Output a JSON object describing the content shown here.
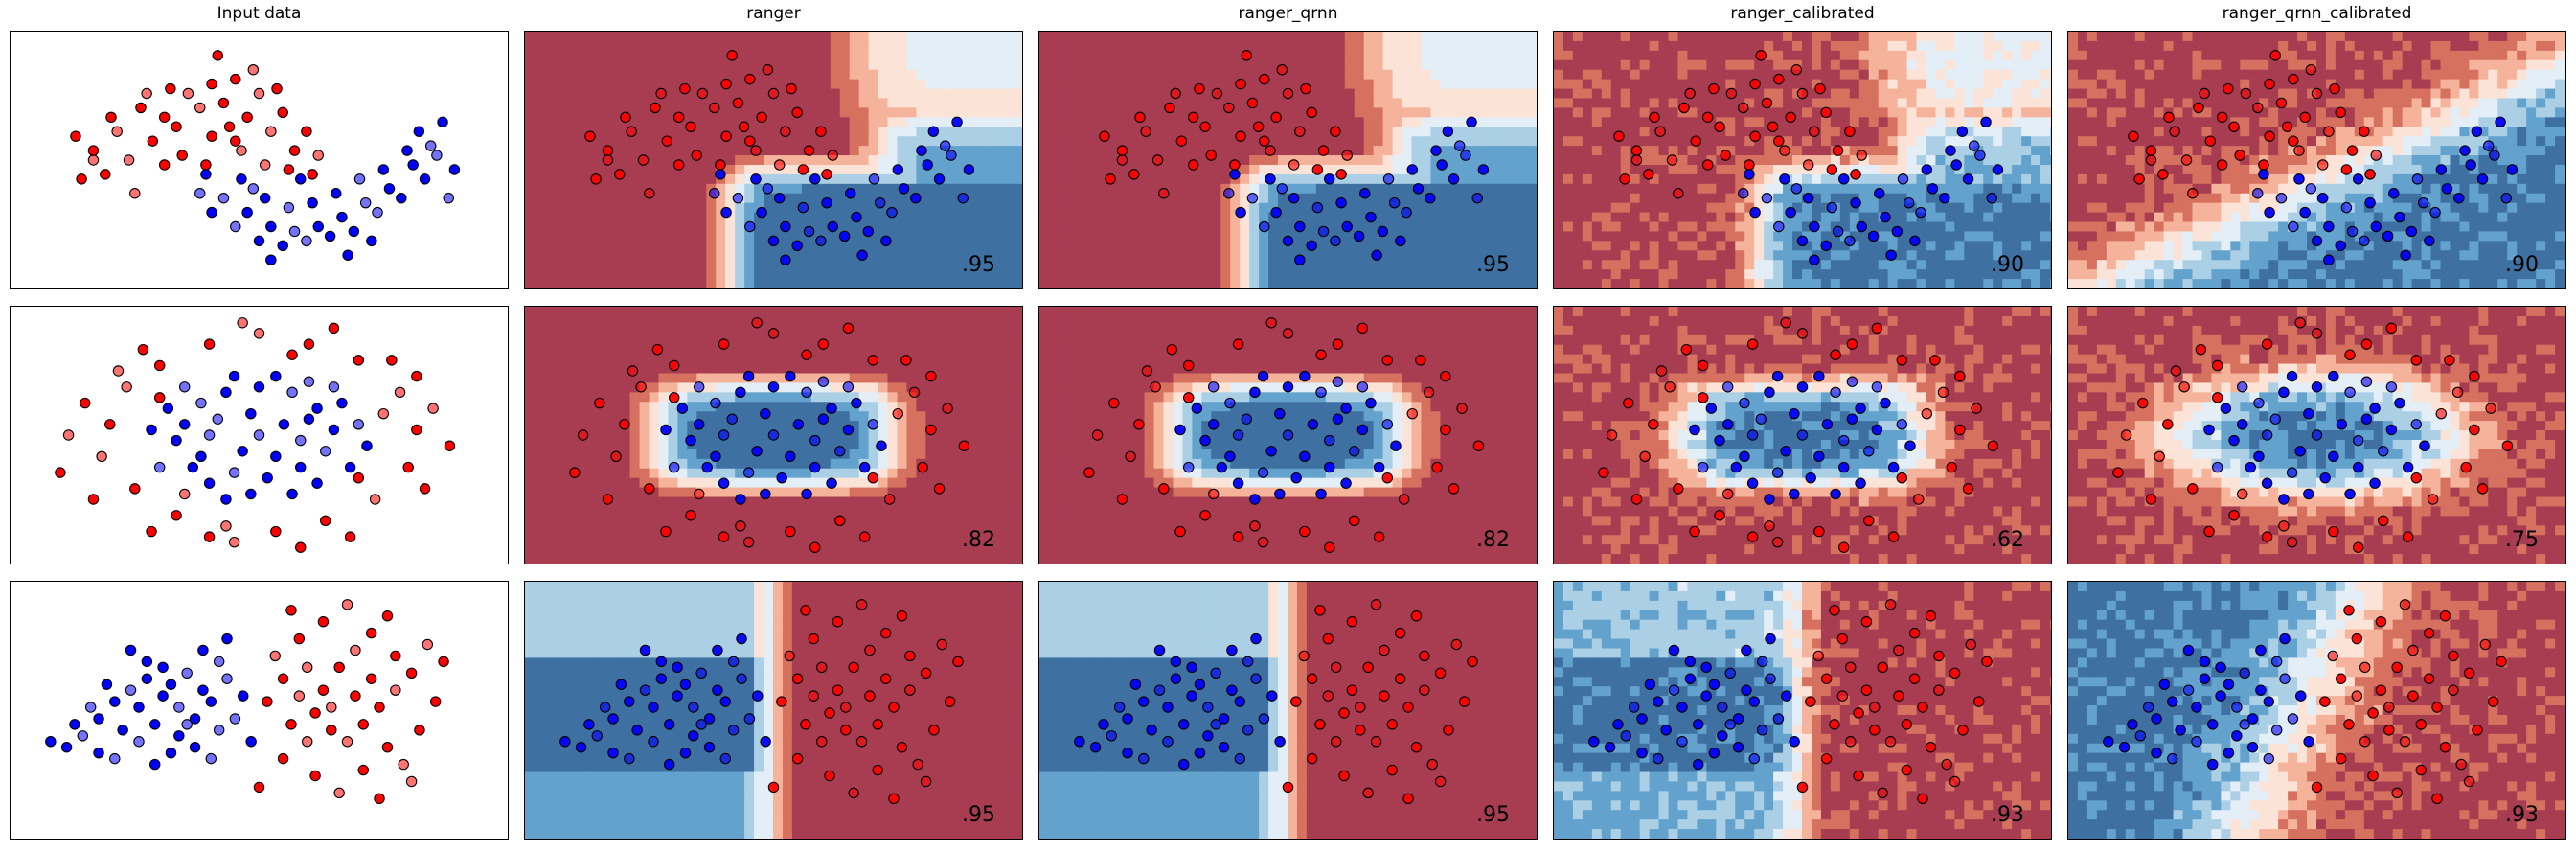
{
  "columns": [
    "Input data",
    "ranger",
    "ranger_qrnn",
    "ranger_calibrated",
    "ranger_qrnn_calibrated"
  ],
  "colors": {
    "red_point": "#ff0000",
    "blue_point": "#0000ff",
    "point_edge": "#000000",
    "map_dark_red": "#a83d52",
    "map_red": "#d6705f",
    "map_light_red": "#f4b39a",
    "map_pale": "#fbe3d7",
    "map_pale_blue": "#e3eef6",
    "map_light_blue": "#abd0e6",
    "map_blue": "#63a2cd",
    "map_dark_blue": "#3e70a2"
  },
  "chart_data": [
    {
      "type": "scatter",
      "dataset": "moons",
      "xlim": [
        -1.6,
        2.6
      ],
      "ylim": [
        -1.1,
        1.6
      ],
      "scores": {
        "ranger": ".95",
        "ranger_qrnn": ".95",
        "ranger_calibrated": ".90",
        "ranger_qrnn_calibrated": ".90"
      },
      "points": {
        "red": [
          [
            -0.9,
            0.35
          ],
          [
            -0.7,
            0.55
          ],
          [
            -0.5,
            0.8
          ],
          [
            -0.3,
            0.7
          ],
          [
            -0.1,
            0.95
          ],
          [
            0.1,
            1.05
          ],
          [
            0.3,
            1.1
          ],
          [
            0.5,
            0.95
          ],
          [
            0.7,
            0.75
          ],
          [
            0.9,
            0.55
          ],
          [
            1.0,
            0.3
          ],
          [
            -1.0,
            0.05
          ],
          [
            -0.8,
            0.1
          ],
          [
            -0.6,
            0.25
          ],
          [
            -0.4,
            0.45
          ],
          [
            -0.2,
            0.6
          ],
          [
            0.0,
            0.8
          ],
          [
            0.2,
            0.85
          ],
          [
            0.4,
            0.7
          ],
          [
            0.6,
            0.55
          ],
          [
            0.8,
            0.35
          ],
          [
            0.95,
            0.1
          ],
          [
            -0.55,
            -0.1
          ],
          [
            -0.3,
            0.2
          ],
          [
            0.1,
            0.5
          ],
          [
            0.35,
            0.35
          ],
          [
            0.15,
            1.35
          ],
          [
            -1.05,
            0.5
          ],
          [
            0.55,
            0.2
          ],
          [
            -0.15,
            0.3
          ],
          [
            0.65,
            1.0
          ],
          [
            -0.45,
            0.95
          ],
          [
            0.25,
            0.6
          ],
          [
            -0.75,
            0.7
          ],
          [
            0.45,
            1.2
          ],
          [
            -0.25,
            1.0
          ],
          [
            0.05,
            0.2
          ],
          [
            -0.9,
            0.25
          ],
          [
            0.75,
            0.15
          ],
          [
            0.3,
            0.45
          ]
        ],
        "blue": [
          [
            0.05,
            0.1
          ],
          [
            0.2,
            -0.15
          ],
          [
            0.4,
            -0.3
          ],
          [
            0.6,
            -0.45
          ],
          [
            0.8,
            -0.5
          ],
          [
            1.0,
            -0.45
          ],
          [
            1.2,
            -0.35
          ],
          [
            1.4,
            -0.2
          ],
          [
            1.6,
            -0.05
          ],
          [
            1.8,
            0.2
          ],
          [
            1.95,
            0.4
          ],
          [
            2.05,
            0.65
          ],
          [
            0.1,
            -0.3
          ],
          [
            0.3,
            -0.45
          ],
          [
            0.5,
            -0.6
          ],
          [
            0.7,
            -0.65
          ],
          [
            0.9,
            -0.6
          ],
          [
            1.1,
            -0.55
          ],
          [
            1.3,
            -0.5
          ],
          [
            1.5,
            -0.3
          ],
          [
            1.7,
            -0.15
          ],
          [
            1.9,
            0.05
          ],
          [
            2.0,
            0.3
          ],
          [
            0.35,
            0.05
          ],
          [
            0.55,
            -0.15
          ],
          [
            0.75,
            -0.25
          ],
          [
            0.95,
            -0.2
          ],
          [
            1.15,
            -0.1
          ],
          [
            1.35,
            0.05
          ],
          [
            1.55,
            0.15
          ],
          [
            1.75,
            0.35
          ],
          [
            0.0,
            -0.1
          ],
          [
            0.6,
            -0.8
          ],
          [
            1.25,
            -0.75
          ],
          [
            2.1,
            -0.15
          ],
          [
            1.85,
            0.55
          ],
          [
            0.85,
            0.05
          ],
          [
            0.45,
            -0.05
          ],
          [
            1.45,
            -0.6
          ],
          [
            2.15,
            0.15
          ]
        ]
      }
    },
    {
      "type": "scatter",
      "dataset": "circles",
      "xlim": [
        -1.5,
        1.5
      ],
      "ylim": [
        -1.2,
        1.2
      ],
      "scores": {
        "ranger": ".82",
        "ranger_qrnn": ".82",
        "ranger_calibrated": ".62",
        "ranger_qrnn_calibrated": ".75"
      },
      "points": {
        "red": [
          [
            -0.9,
            0.1
          ],
          [
            -0.8,
            0.45
          ],
          [
            -0.6,
            0.65
          ],
          [
            -0.3,
            0.85
          ],
          [
            0.0,
            0.95
          ],
          [
            0.3,
            0.85
          ],
          [
            0.6,
            0.7
          ],
          [
            0.85,
            0.4
          ],
          [
            0.95,
            0.05
          ],
          [
            0.9,
            -0.3
          ],
          [
            0.7,
            -0.6
          ],
          [
            0.4,
            -0.8
          ],
          [
            0.1,
            -0.9
          ],
          [
            -0.2,
            -0.85
          ],
          [
            -0.5,
            -0.75
          ],
          [
            -0.75,
            -0.5
          ],
          [
            -0.95,
            -0.2
          ],
          [
            -1.05,
            0.3
          ],
          [
            -0.7,
            0.8
          ],
          [
            -0.1,
            1.05
          ],
          [
            0.45,
            1.0
          ],
          [
            0.8,
            0.7
          ],
          [
            1.05,
            0.25
          ],
          [
            1.0,
            -0.5
          ],
          [
            0.55,
            -0.95
          ],
          [
            -0.15,
            -1.0
          ],
          [
            -0.65,
            -0.9
          ],
          [
            -1.0,
            -0.6
          ],
          [
            -1.15,
            0.0
          ],
          [
            1.15,
            -0.1
          ],
          [
            0.2,
            0.75
          ],
          [
            -0.45,
            -0.55
          ],
          [
            0.6,
            -0.4
          ],
          [
            -0.6,
            0.35
          ],
          [
            0.75,
            0.2
          ],
          [
            -0.3,
            -0.95
          ],
          [
            0.25,
            -1.05
          ],
          [
            -0.85,
            0.6
          ],
          [
            0.95,
            0.55
          ],
          [
            -1.2,
            -0.35
          ]
        ],
        "blue": [
          [
            -0.45,
            0.1
          ],
          [
            -0.35,
            0.3
          ],
          [
            -0.2,
            0.4
          ],
          [
            0.0,
            0.45
          ],
          [
            0.2,
            0.4
          ],
          [
            0.35,
            0.25
          ],
          [
            0.45,
            0.05
          ],
          [
            0.4,
            -0.15
          ],
          [
            0.25,
            -0.3
          ],
          [
            0.05,
            -0.4
          ],
          [
            -0.15,
            -0.35
          ],
          [
            -0.35,
            -0.2
          ],
          [
            -0.5,
            -0.05
          ],
          [
            -0.25,
            0.15
          ],
          [
            -0.05,
            0.2
          ],
          [
            0.15,
            0.1
          ],
          [
            0.25,
            -0.05
          ],
          [
            0.1,
            -0.2
          ],
          [
            -0.1,
            -0.15
          ],
          [
            -0.3,
            0.0
          ],
          [
            0.5,
            0.3
          ],
          [
            -0.55,
            0.25
          ],
          [
            0.3,
            0.5
          ],
          [
            -0.3,
            -0.45
          ],
          [
            0.55,
            -0.3
          ],
          [
            -0.6,
            -0.3
          ],
          [
            0.1,
            0.55
          ],
          [
            -0.15,
            0.55
          ],
          [
            0.6,
            0.1
          ],
          [
            -0.05,
            -0.55
          ],
          [
            0.35,
            -0.45
          ],
          [
            -0.45,
            0.45
          ],
          [
            0.2,
            -0.55
          ],
          [
            -0.65,
            0.05
          ],
          [
            0.45,
            0.45
          ],
          [
            0.65,
            -0.1
          ],
          [
            -0.2,
            -0.6
          ],
          [
            0.0,
            0.0
          ],
          [
            0.3,
            0.15
          ],
          [
            -0.4,
            -0.3
          ]
        ]
      }
    },
    {
      "type": "scatter",
      "dataset": "linearly_separable",
      "xlim": [
        -3.0,
        3.2
      ],
      "ylim": [
        -2.2,
        2.3
      ],
      "scores": {
        "ranger": ".95",
        "ranger_qrnn": ".95",
        "ranger_calibrated": ".93",
        "ranger_qrnn_calibrated": ".93"
      },
      "points": {
        "blue": [
          [
            -2.3,
            -0.6
          ],
          [
            -2.1,
            -0.4
          ],
          [
            -1.9,
            -0.1
          ],
          [
            -1.7,
            0.2
          ],
          [
            -1.5,
            0.4
          ],
          [
            -1.3,
            0.6
          ],
          [
            -1.1,
            0.3
          ],
          [
            -0.9,
            0.1
          ],
          [
            -0.7,
            -0.1
          ],
          [
            -1.6,
            -0.3
          ],
          [
            -1.4,
            -0.5
          ],
          [
            -1.2,
            -0.2
          ],
          [
            -1.0,
            0.5
          ],
          [
            -0.8,
            0.7
          ],
          [
            -0.6,
            0.4
          ],
          [
            -1.8,
            0.5
          ],
          [
            -2.0,
            0.1
          ],
          [
            -1.3,
            0.9
          ],
          [
            -0.5,
            0.2
          ],
          [
            -0.4,
            -0.3
          ],
          [
            -1.0,
            -0.7
          ],
          [
            -1.5,
            1.1
          ],
          [
            -0.3,
            0.6
          ],
          [
            -0.9,
            -0.4
          ],
          [
            -2.5,
            -0.5
          ],
          [
            -1.7,
            -0.8
          ],
          [
            -0.7,
            -0.6
          ],
          [
            -1.1,
            0.8
          ],
          [
            -0.2,
            -0.1
          ],
          [
            -1.4,
            0.1
          ],
          [
            -0.6,
            1.1
          ],
          [
            -0.4,
            0.9
          ],
          [
            -1.9,
            -0.7
          ],
          [
            -0.1,
            0.3
          ],
          [
            -0.8,
            -0.2
          ],
          [
            0.0,
            -0.5
          ],
          [
            -1.2,
            -0.9
          ],
          [
            -0.5,
            -0.8
          ],
          [
            -0.3,
            1.3
          ],
          [
            -2.2,
            -0.2
          ]
        ],
        "red": [
          [
            0.4,
            0.6
          ],
          [
            0.6,
            0.3
          ],
          [
            0.8,
            0.0
          ],
          [
            1.0,
            -0.3
          ],
          [
            1.2,
            -0.5
          ],
          [
            1.4,
            -0.2
          ],
          [
            1.6,
            0.1
          ],
          [
            1.8,
            0.4
          ],
          [
            2.0,
            0.7
          ],
          [
            0.5,
            -0.2
          ],
          [
            0.7,
            -0.5
          ],
          [
            0.9,
            0.4
          ],
          [
            1.1,
            0.8
          ],
          [
            1.3,
            1.1
          ],
          [
            1.5,
            0.6
          ],
          [
            1.7,
            -0.6
          ],
          [
            1.9,
            -0.9
          ],
          [
            2.1,
            -0.3
          ],
          [
            2.3,
            0.2
          ],
          [
            0.3,
            1.0
          ],
          [
            0.6,
            1.3
          ],
          [
            0.9,
            1.6
          ],
          [
            1.2,
            1.9
          ],
          [
            1.5,
            1.4
          ],
          [
            1.8,
            1.0
          ],
          [
            2.2,
            1.2
          ],
          [
            0.4,
            -0.8
          ],
          [
            0.8,
            -1.1
          ],
          [
            1.1,
            -1.4
          ],
          [
            1.4,
            -1.0
          ],
          [
            1.7,
            1.7
          ],
          [
            2.0,
            -1.2
          ],
          [
            0.2,
            0.2
          ],
          [
            0.5,
            1.8
          ],
          [
            1.0,
            0.1
          ],
          [
            1.3,
            0.3
          ],
          [
            2.4,
            0.9
          ],
          [
            0.7,
            0.8
          ],
          [
            1.6,
            -1.5
          ],
          [
            0.1,
            -1.3
          ]
        ]
      }
    }
  ]
}
